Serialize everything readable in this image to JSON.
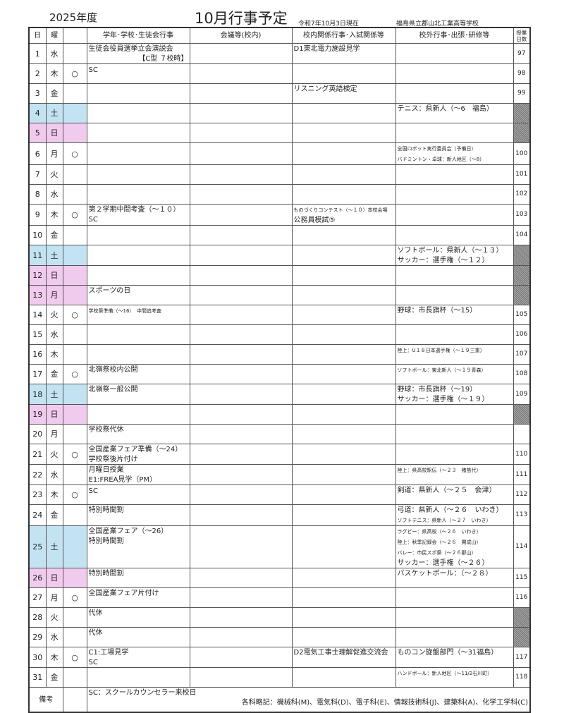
{
  "header": {
    "fiscal_year": "2025年度",
    "title": "10月行事予定",
    "as_of": "令和7年10月3日現在",
    "school": "福島県立郡山北工業高等学校"
  },
  "columns": {
    "day": "日",
    "dow": "曜",
    "mark": "",
    "c1": "学年･学校･生徒会行事",
    "c2": "会議等(校内)",
    "c3": "校内関係行事･入試関係等",
    "c4": "校外行事･出張･研修等",
    "num": "授業日数"
  },
  "colors": {
    "saturday": "#c4e3f2",
    "sunday_holiday": "#f1cbee",
    "no_class": "#999999"
  },
  "rows": [
    {
      "day": "1",
      "dow": "水",
      "mark": "",
      "c1": [
        {
          "text": "生徒会役員選挙立会演説会"
        },
        {
          "text": "【C型 ７校時】",
          "align": "right"
        }
      ],
      "c2": [],
      "c3": [
        {
          "text": "D1東北電力施設見学"
        }
      ],
      "c4": [],
      "num": "97"
    },
    {
      "day": "2",
      "dow": "木",
      "mark": "○",
      "c1": [
        {
          "text": ""
        },
        {
          "text": "SC"
        }
      ],
      "c2": [],
      "c3": [],
      "c4": [],
      "num": "98"
    },
    {
      "day": "3",
      "dow": "金",
      "mark": "",
      "c1": [],
      "c2": [],
      "c3": [
        {
          "text": "リスニング英語検定"
        }
      ],
      "c4": [],
      "num": "99"
    },
    {
      "day": "4",
      "dow": "土",
      "mark": "",
      "type": "sat",
      "c1": [],
      "c2": [],
      "c3": [],
      "c4": [
        {
          "text": "テニス：県新人（～6　福島）"
        }
      ],
      "num": ""
    },
    {
      "day": "5",
      "dow": "日",
      "mark": "",
      "type": "sun",
      "c1": [],
      "c2": [],
      "c3": [],
      "c4": [],
      "num": ""
    },
    {
      "day": "6",
      "dow": "月",
      "mark": "○",
      "c1": [],
      "c2": [],
      "c3": [],
      "c4": [
        {
          "text": "全国ロボット実行委員会（予備日）",
          "small": true
        },
        {
          "text": "バドミントン・卓球：新人地区（～8）",
          "small": true
        }
      ],
      "num": "100"
    },
    {
      "day": "7",
      "dow": "火",
      "mark": "",
      "c1": [],
      "c2": [],
      "c3": [],
      "c4": [],
      "num": "101"
    },
    {
      "day": "8",
      "dow": "水",
      "mark": "",
      "c1": [],
      "c2": [],
      "c3": [],
      "c4": [],
      "num": "102"
    },
    {
      "day": "9",
      "dow": "木",
      "mark": "○",
      "c1": [
        {
          "text": "第２学期中間考査（～１０）"
        },
        {
          "text": "SC"
        }
      ],
      "c2": [],
      "c3": [
        {
          "text": "ものづくりコンテスト（～１０）本校会場",
          "small": true
        },
        {
          "text": "公務員模試⑤"
        }
      ],
      "c4": [],
      "num": "103"
    },
    {
      "day": "10",
      "dow": "金",
      "mark": "",
      "c1": [],
      "c2": [],
      "c3": [],
      "c4": [],
      "num": "104"
    },
    {
      "day": "11",
      "dow": "土",
      "mark": "",
      "type": "sat",
      "c1": [],
      "c2": [],
      "c3": [],
      "c4": [
        {
          "text": "ソフトボール：県新人（～１３）"
        },
        {
          "text": "サッカー：選手権（～１２）"
        }
      ],
      "num": ""
    },
    {
      "day": "12",
      "dow": "日",
      "mark": "",
      "type": "sun",
      "c1": [],
      "c2": [],
      "c3": [],
      "c4": [],
      "num": ""
    },
    {
      "day": "13",
      "dow": "月",
      "mark": "",
      "type": "sun",
      "c1": [
        {
          "text": "スポーツの日"
        }
      ],
      "c2": [],
      "c3": [],
      "c4": [],
      "num": ""
    },
    {
      "day": "14",
      "dow": "火",
      "mark": "○",
      "c1": [
        {
          "text": "学校祭準備（～16）　中間追考査",
          "small": true
        }
      ],
      "c2": [],
      "c3": [],
      "c4": [
        {
          "text": "野球：市長旗杯（～15）"
        }
      ],
      "num": "105"
    },
    {
      "day": "15",
      "dow": "水",
      "mark": "",
      "c1": [],
      "c2": [],
      "c3": [],
      "c4": [],
      "num": "106"
    },
    {
      "day": "16",
      "dow": "木",
      "mark": "",
      "c1": [],
      "c2": [],
      "c3": [],
      "c4": [
        {
          "text": "陸上：U１８日本選手権（～１９三重）",
          "small": true
        }
      ],
      "num": "107"
    },
    {
      "day": "17",
      "dow": "金",
      "mark": "○",
      "c1": [
        {
          "text": "北嶺祭校内公開"
        }
      ],
      "c2": [],
      "c3": [],
      "c4": [
        {
          "text": "ソフトボール：東北新人（～１９青森）",
          "small": true
        }
      ],
      "num": "108"
    },
    {
      "day": "18",
      "dow": "土",
      "mark": "",
      "type": "sat",
      "c1": [
        {
          "text": "北嶺祭一般公開"
        }
      ],
      "c2": [],
      "c3": [],
      "c4": [
        {
          "text": "野球：市長旗杯（～19）"
        },
        {
          "text": "サッカー：選手権（～１９）"
        }
      ],
      "num": "109"
    },
    {
      "day": "19",
      "dow": "日",
      "mark": "",
      "type": "sun",
      "c1": [],
      "c2": [],
      "c3": [],
      "c4": [],
      "num": ""
    },
    {
      "day": "20",
      "dow": "月",
      "mark": "",
      "c1": [
        {
          "text": "学校祭代休"
        }
      ],
      "c2": [],
      "c3": [],
      "c4": [],
      "num": "",
      "nohatch": true
    },
    {
      "day": "21",
      "dow": "火",
      "mark": "○",
      "c1": [
        {
          "text": "全国産業フェア準備（～24）"
        },
        {
          "text": "学校祭後片付け"
        }
      ],
      "c2": [],
      "c3": [],
      "c4": [],
      "num": "110"
    },
    {
      "day": "22",
      "dow": "水",
      "mark": "",
      "c1": [
        {
          "text": "月曜日授業"
        },
        {
          "text": "E1:FREA見学（PM）"
        }
      ],
      "c2": [],
      "c3": [],
      "c4": [
        {
          "text": "陸上：県高校駅伝（～２３　猪苗代）",
          "small": true
        }
      ],
      "num": "111"
    },
    {
      "day": "23",
      "dow": "木",
      "mark": "○",
      "c1": [
        {
          "text": ""
        },
        {
          "text": "SC"
        }
      ],
      "c2": [],
      "c3": [],
      "c4": [
        {
          "text": "剣道：県新人（～２５　会津）"
        }
      ],
      "num": "112"
    },
    {
      "day": "24",
      "dow": "金",
      "mark": "",
      "c1": [
        {
          "text": "特別時間割"
        }
      ],
      "c2": [],
      "c3": [],
      "c4": [
        {
          "text": "弓道：県新人（～２６　いわき）"
        },
        {
          "text": "ソフトテニス：県新人（～２７　いわき）",
          "small": true
        }
      ],
      "num": "113"
    },
    {
      "day": "25",
      "dow": "土",
      "mark": "",
      "type": "sat",
      "c1": [
        {
          "text": "全国産業フェア（～26）"
        },
        {
          "text": "特別時間割"
        }
      ],
      "c2": [],
      "c3": [],
      "c4": [
        {
          "text": "ラグビー：県高校（～２６　いわき）",
          "small": true
        },
        {
          "text": "陸上：秋季記録会（～２６　開成山）",
          "small": true
        },
        {
          "text": "バレー：市民スポ祭（～２６郡山）",
          "small": true
        },
        {
          "text": "サッカー：選手権（～２６）"
        }
      ],
      "num": "114"
    },
    {
      "day": "26",
      "dow": "日",
      "mark": "",
      "type": "sun",
      "c1": [
        {
          "text": "特別時間割"
        }
      ],
      "c2": [],
      "c3": [],
      "c4": [
        {
          "text": "バスケットボール：（～２８）"
        }
      ],
      "num": "115"
    },
    {
      "day": "27",
      "dow": "月",
      "mark": "○",
      "c1": [
        {
          "text": "全国産業フェア片付け"
        }
      ],
      "c2": [],
      "c3": [],
      "c4": [],
      "num": "116"
    },
    {
      "day": "28",
      "dow": "火",
      "mark": "",
      "c1": [
        {
          "text": "代休"
        }
      ],
      "c2": [],
      "c3": [],
      "c4": [],
      "num": ""
    },
    {
      "day": "29",
      "dow": "水",
      "mark": "",
      "c1": [
        {
          "text": "代休"
        }
      ],
      "c2": [],
      "c3": [],
      "c4": [],
      "num": ""
    },
    {
      "day": "30",
      "dow": "木",
      "mark": "○",
      "c1": [
        {
          "text": "C1:工場見学"
        },
        {
          "text": "SC"
        }
      ],
      "c2": [],
      "c3": [
        {
          "text": "D2電気工事士理解促進交流会"
        }
      ],
      "c4": [
        {
          "text": "ものコン旋盤部門（～31福島）"
        }
      ],
      "num": "117"
    },
    {
      "day": "31",
      "dow": "金",
      "mark": "",
      "c1": [],
      "c2": [],
      "c3": [],
      "c4": [
        {
          "text": "ハンドボール：新人地区（～11/2石川町）",
          "small": true
        }
      ],
      "num": "118"
    }
  ],
  "notes": {
    "label": "備考",
    "line1": "SC：スクールカウンセラー来校日",
    "line2": "各科略記：機械科(M)、電気科(D)、電子科(E)、情報技術科(J)、建築科(A)、化学工学科(C)"
  }
}
